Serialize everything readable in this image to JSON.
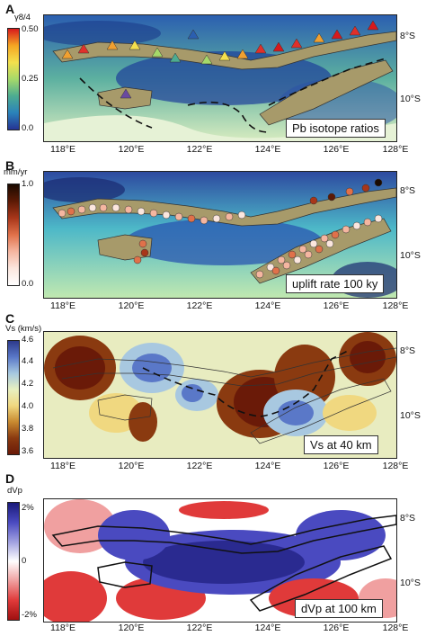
{
  "lon_ticks": [
    "118°E",
    "120°E",
    "122°E",
    "124°E",
    "126°E",
    "128°E"
  ],
  "lat_ticks": [
    "8°S",
    "10°S"
  ],
  "panels": {
    "a": {
      "letter": "A",
      "cbar_title": "γ8/4",
      "cbar_ticks": [
        "0.50",
        "0.25",
        "0.0"
      ],
      "legend": "Pb isotope ratios",
      "cbar_colors": [
        "#d7191c",
        "#f5a623",
        "#f4e04d",
        "#a6d96a",
        "#4dac91",
        "#2b83ba",
        "#253494"
      ]
    },
    "b": {
      "letter": "B",
      "cbar_title": "mm/yr",
      "cbar_ticks": [
        "1.0",
        "0.0"
      ],
      "legend": "uplift rate 100 ky",
      "cbar_colors": [
        "#1a0a00",
        "#5c1a05",
        "#a8361a",
        "#e0714a",
        "#f5b6a0",
        "#fbe6de",
        "#ffffff"
      ]
    },
    "c": {
      "letter": "C",
      "cbar_title": "Vs (km/s)",
      "cbar_ticks": [
        "4.6",
        "4.4",
        "4.2",
        "4.0",
        "3.8",
        "3.6"
      ],
      "legend": "Vs at 40 km",
      "cbar_colors": [
        "#2d3a8c",
        "#5a78c8",
        "#a6c8e0",
        "#e8f0c0",
        "#f0d880",
        "#c88a30",
        "#8a3a10",
        "#6a1a08"
      ]
    },
    "d": {
      "letter": "D",
      "cbar_title": "dVp",
      "cbar_ticks": [
        "2%",
        "0",
        "-2%"
      ],
      "legend": "dVp at 100 km",
      "cbar_colors": [
        "#1a1a7a",
        "#4a4ac0",
        "#a0a0e0",
        "#ffffff",
        "#f0a0a0",
        "#e03a3a",
        "#a01010"
      ]
    }
  }
}
